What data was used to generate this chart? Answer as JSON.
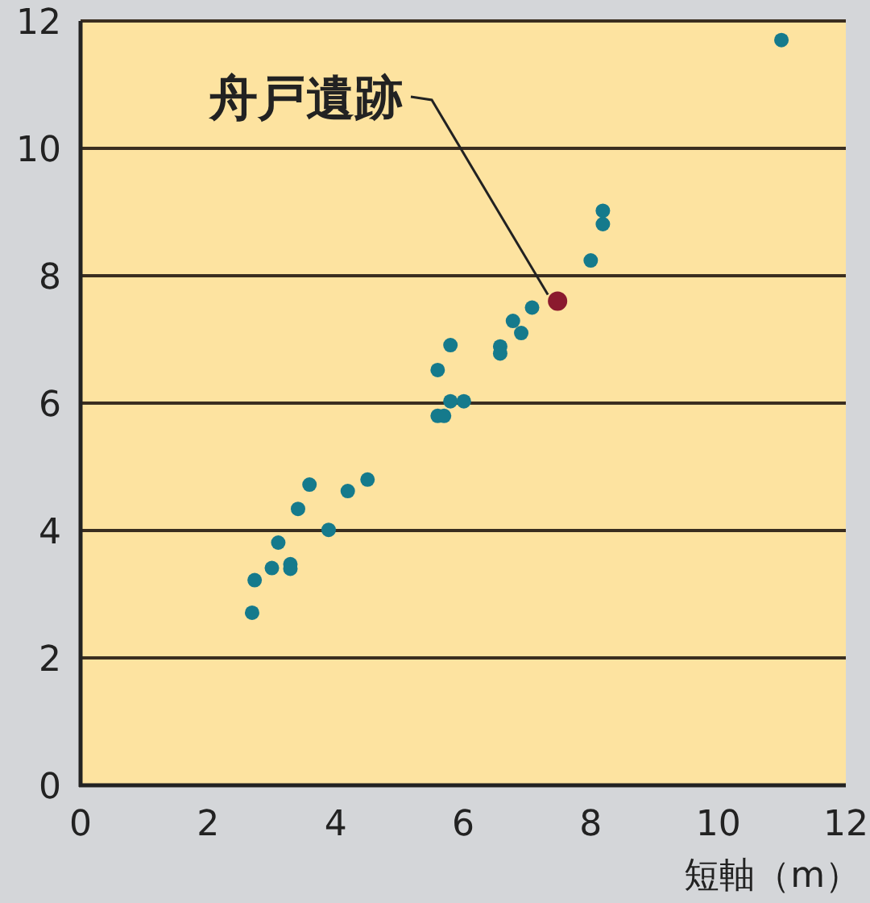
{
  "chart_data": {
    "type": "scatter",
    "xlabel": "短軸（m）",
    "xlim": [
      0,
      12
    ],
    "ylim": [
      0,
      12
    ],
    "xticks": [
      0,
      2,
      4,
      6,
      8,
      10,
      12
    ],
    "yticks": [
      0,
      2,
      4,
      6,
      8,
      10,
      12
    ],
    "grid": "y",
    "marker": "circle",
    "series": [
      {
        "color": "#157a8c",
        "x": [
          2.69,
          2.73,
          3.0,
          3.29,
          3.29,
          3.1,
          3.89,
          3.41,
          3.59,
          4.19,
          4.5,
          5.6,
          5.7,
          5.8,
          6.01,
          5.6,
          5.8,
          6.58,
          6.58,
          6.78,
          6.91,
          7.08,
          8.0,
          8.19,
          8.19,
          10.99
        ],
        "values": [
          2.71,
          3.22,
          3.41,
          3.47,
          3.4,
          3.81,
          4.01,
          4.34,
          4.72,
          4.62,
          4.8,
          5.8,
          5.8,
          6.03,
          6.03,
          6.52,
          6.91,
          6.89,
          6.78,
          7.29,
          7.1,
          7.5,
          8.24,
          9.02,
          8.81,
          11.7
        ]
      },
      {
        "color": "#8b1a2e",
        "x": [
          7.48
        ],
        "values": [
          7.6
        ]
      }
    ],
    "annotations": [
      {
        "text": "舟戸遺跡",
        "x": 7.48,
        "y": 7.6
      }
    ]
  }
}
